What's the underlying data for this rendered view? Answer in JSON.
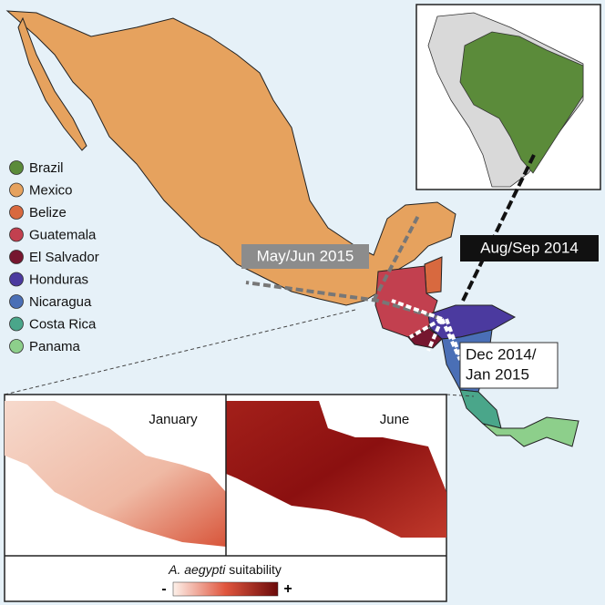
{
  "legend": [
    {
      "label": "Brazil",
      "color": "#5b8b3a"
    },
    {
      "label": "Mexico",
      "color": "#e6a25e"
    },
    {
      "label": "Belize",
      "color": "#d8693f"
    },
    {
      "label": "Guatemala",
      "color": "#c2404f"
    },
    {
      "label": "El Salvador",
      "color": "#76162f"
    },
    {
      "label": "Honduras",
      "color": "#4b3a9f"
    },
    {
      "label": "Nicaragua",
      "color": "#4a6fb6"
    },
    {
      "label": "Costa Rica",
      "color": "#4aa68a"
    },
    {
      "label": "Panama",
      "color": "#8dcf8b"
    }
  ],
  "arrows": {
    "spread_mexico": "May/Jun 2015",
    "introduction": "Aug/Sep 2014",
    "spread_south": [
      "Dec 2014/",
      "Jan 2015"
    ]
  },
  "panels": [
    "January",
    "June"
  ],
  "colorbar": {
    "species": "A. aegypti",
    "title": "suitability",
    "low": "-",
    "high": "+"
  }
}
